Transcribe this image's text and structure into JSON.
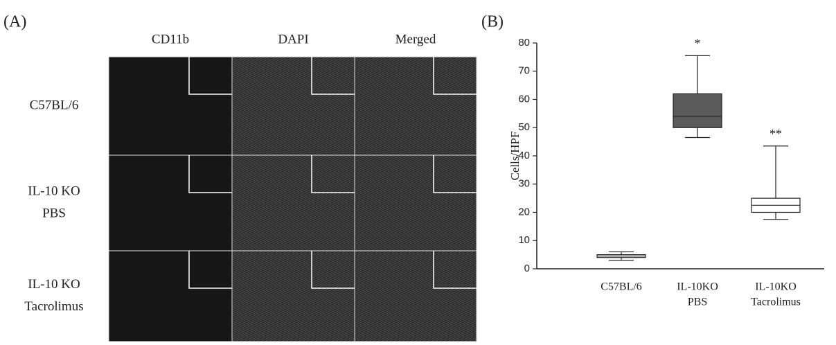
{
  "panel_a": {
    "label": "(A)",
    "columns": [
      "CD11b",
      "DAPI",
      "Merged"
    ],
    "rows": [
      [
        "C57BL/6"
      ],
      [
        "IL-10 KO",
        "PBS"
      ],
      [
        "IL-10 KO",
        "Tacrolimus"
      ]
    ]
  },
  "chart_data": {
    "type": "box",
    "panel_label": "(B)",
    "ylabel": "Cells/HPF",
    "categories": [
      [
        "C57BL/6"
      ],
      [
        "IL-10KO",
        "PBS"
      ],
      [
        "IL-10KO",
        "Tacrolimus"
      ]
    ],
    "min": [
      3,
      46.5,
      17.5
    ],
    "q1": [
      4,
      50,
      20
    ],
    "median": [
      4.5,
      54,
      22.5
    ],
    "q3": [
      5,
      62,
      25
    ],
    "max": [
      6,
      75.5,
      43.5
    ],
    "colors": [
      "#ffffff",
      "#5a5a5a",
      "#ffffff"
    ],
    "annotations": [
      null,
      "*",
      "**"
    ],
    "ylim": [
      0,
      80
    ],
    "yticks": [
      0,
      10,
      20,
      30,
      40,
      50,
      60,
      70,
      80
    ]
  }
}
